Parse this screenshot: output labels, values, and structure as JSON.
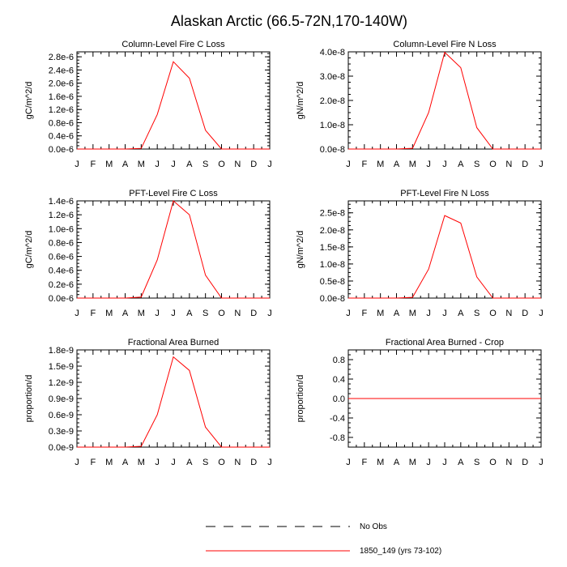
{
  "figure": {
    "title": "Alaskan Arctic (66.5-72N,170-140W)"
  },
  "months": [
    "J",
    "F",
    "M",
    "A",
    "M",
    "J",
    "J",
    "A",
    "S",
    "O",
    "N",
    "D",
    "J"
  ],
  "colors": {
    "model": "#ff0000",
    "obs": "#000000",
    "axis": "#000000"
  },
  "legend": {
    "obs_label": "No Obs",
    "model_label": "1850_149 (yrs 73-102)"
  },
  "chart_data": [
    {
      "type": "line",
      "title": "Column-Level Fire C Loss",
      "ylabel": "gC/m^2/d",
      "ylim": [
        0,
        2.95e-06
      ],
      "yticks": [
        0,
        4e-07,
        8e-07,
        1.2e-06,
        1.6e-06,
        2e-06,
        2.4e-06,
        2.8e-06
      ],
      "yticklabels": [
        "0.0e-6",
        "0.4e-6",
        "0.8e-6",
        "1.2e-6",
        "1.6e-6",
        "2.0e-6",
        "2.4e-6",
        "2.8e-6"
      ],
      "x": [
        "J",
        "F",
        "M",
        "A",
        "M",
        "J",
        "J",
        "A",
        "S",
        "O",
        "N",
        "D",
        "J"
      ],
      "series": [
        {
          "name": "1850_149 (yrs 73-102)",
          "values": [
            0,
            0,
            0,
            0,
            2e-08,
            1.05e-06,
            2.65e-06,
            2.15e-06,
            5.7e-07,
            0,
            0,
            0,
            0
          ]
        }
      ]
    },
    {
      "type": "line",
      "title": "Column-Level Fire N Loss",
      "ylabel": "gN/m^2/d",
      "ylim": [
        0,
        4e-08
      ],
      "yticks": [
        0,
        1e-08,
        2e-08,
        3e-08,
        4e-08
      ],
      "yticklabels": [
        "0.0e-8",
        "1.0e-8",
        "2.0e-8",
        "3.0e-8",
        "4.0e-8"
      ],
      "x": [
        "J",
        "F",
        "M",
        "A",
        "M",
        "J",
        "J",
        "A",
        "S",
        "O",
        "N",
        "D",
        "J"
      ],
      "series": [
        {
          "name": "1850_149 (yrs 73-102)",
          "values": [
            0,
            0,
            0,
            0,
            3e-10,
            1.5e-08,
            3.98e-08,
            3.35e-08,
            8.8e-09,
            0,
            0,
            0,
            0
          ]
        }
      ]
    },
    {
      "type": "line",
      "title": "PFT-Level Fire C Loss",
      "ylabel": "gC/m^2/d",
      "ylim": [
        0,
        1.4e-06
      ],
      "yticks": [
        0,
        2e-07,
        4e-07,
        6e-07,
        8e-07,
        1e-06,
        1.2e-06,
        1.4e-06
      ],
      "yticklabels": [
        "0.0e-6",
        "0.2e-6",
        "0.4e-6",
        "0.6e-6",
        "0.8e-6",
        "1.0e-6",
        "1.2e-6",
        "1.4e-6"
      ],
      "x": [
        "J",
        "F",
        "M",
        "A",
        "M",
        "J",
        "J",
        "A",
        "S",
        "O",
        "N",
        "D",
        "J"
      ],
      "series": [
        {
          "name": "1850_149 (yrs 73-102)",
          "values": [
            0,
            0,
            0,
            0,
            1.5e-08,
            5.5e-07,
            1.4e-06,
            1.2e-06,
            3.3e-07,
            0,
            0,
            0,
            0
          ]
        }
      ]
    },
    {
      "type": "line",
      "title": "PFT-Level Fire N Loss",
      "ylabel": "gN/m^2/d",
      "ylim": [
        0,
        2.85e-08
      ],
      "yticks": [
        0,
        5e-09,
        1e-08,
        1.5e-08,
        2e-08,
        2.5e-08
      ],
      "yticklabels": [
        "0.0e-8",
        "0.5e-8",
        "1.0e-8",
        "1.5e-8",
        "2.0e-8",
        "2.5e-8"
      ],
      "x": [
        "J",
        "F",
        "M",
        "A",
        "M",
        "J",
        "J",
        "A",
        "S",
        "O",
        "N",
        "D",
        "J"
      ],
      "series": [
        {
          "name": "1850_149 (yrs 73-102)",
          "values": [
            0,
            0,
            0,
            0,
            2e-10,
            8.5e-09,
            2.42e-08,
            2.2e-08,
            6.2e-09,
            0,
            0,
            0,
            0
          ]
        }
      ]
    },
    {
      "type": "line",
      "title": "Fractional Area Burned",
      "ylabel": "proportion/d",
      "ylim": [
        0,
        1.8e-09
      ],
      "yticks": [
        0,
        3e-10,
        6e-10,
        9e-10,
        1.2e-09,
        1.5e-09,
        1.8e-09
      ],
      "yticklabels": [
        "0.0e-9",
        "0.3e-9",
        "0.6e-9",
        "0.9e-9",
        "1.2e-9",
        "1.5e-9",
        "1.8e-9"
      ],
      "x": [
        "J",
        "F",
        "M",
        "A",
        "M",
        "J",
        "J",
        "A",
        "S",
        "O",
        "N",
        "D",
        "J"
      ],
      "series": [
        {
          "name": "1850_149 (yrs 73-102)",
          "values": [
            0,
            0,
            0,
            0,
            1.5e-11,
            6e-10,
            1.67e-09,
            1.42e-09,
            3.7e-10,
            0,
            0,
            0,
            0
          ]
        }
      ]
    },
    {
      "type": "line",
      "title": "Fractional Area Burned - Crop",
      "ylabel": "proportion/d",
      "ylim": [
        -1,
        1
      ],
      "yticks": [
        -0.8,
        -0.4,
        0,
        0.4,
        0.8
      ],
      "yticklabels": [
        "-0.8",
        "-0.4",
        "0.0",
        "0.4",
        "0.8"
      ],
      "x": [
        "J",
        "F",
        "M",
        "A",
        "M",
        "J",
        "J",
        "A",
        "S",
        "O",
        "N",
        "D",
        "J"
      ],
      "series": [
        {
          "name": "1850_149 (yrs 73-102)",
          "values": [
            0,
            0,
            0,
            0,
            0,
            0,
            0,
            0,
            0,
            0,
            0,
            0,
            0
          ]
        }
      ]
    }
  ]
}
